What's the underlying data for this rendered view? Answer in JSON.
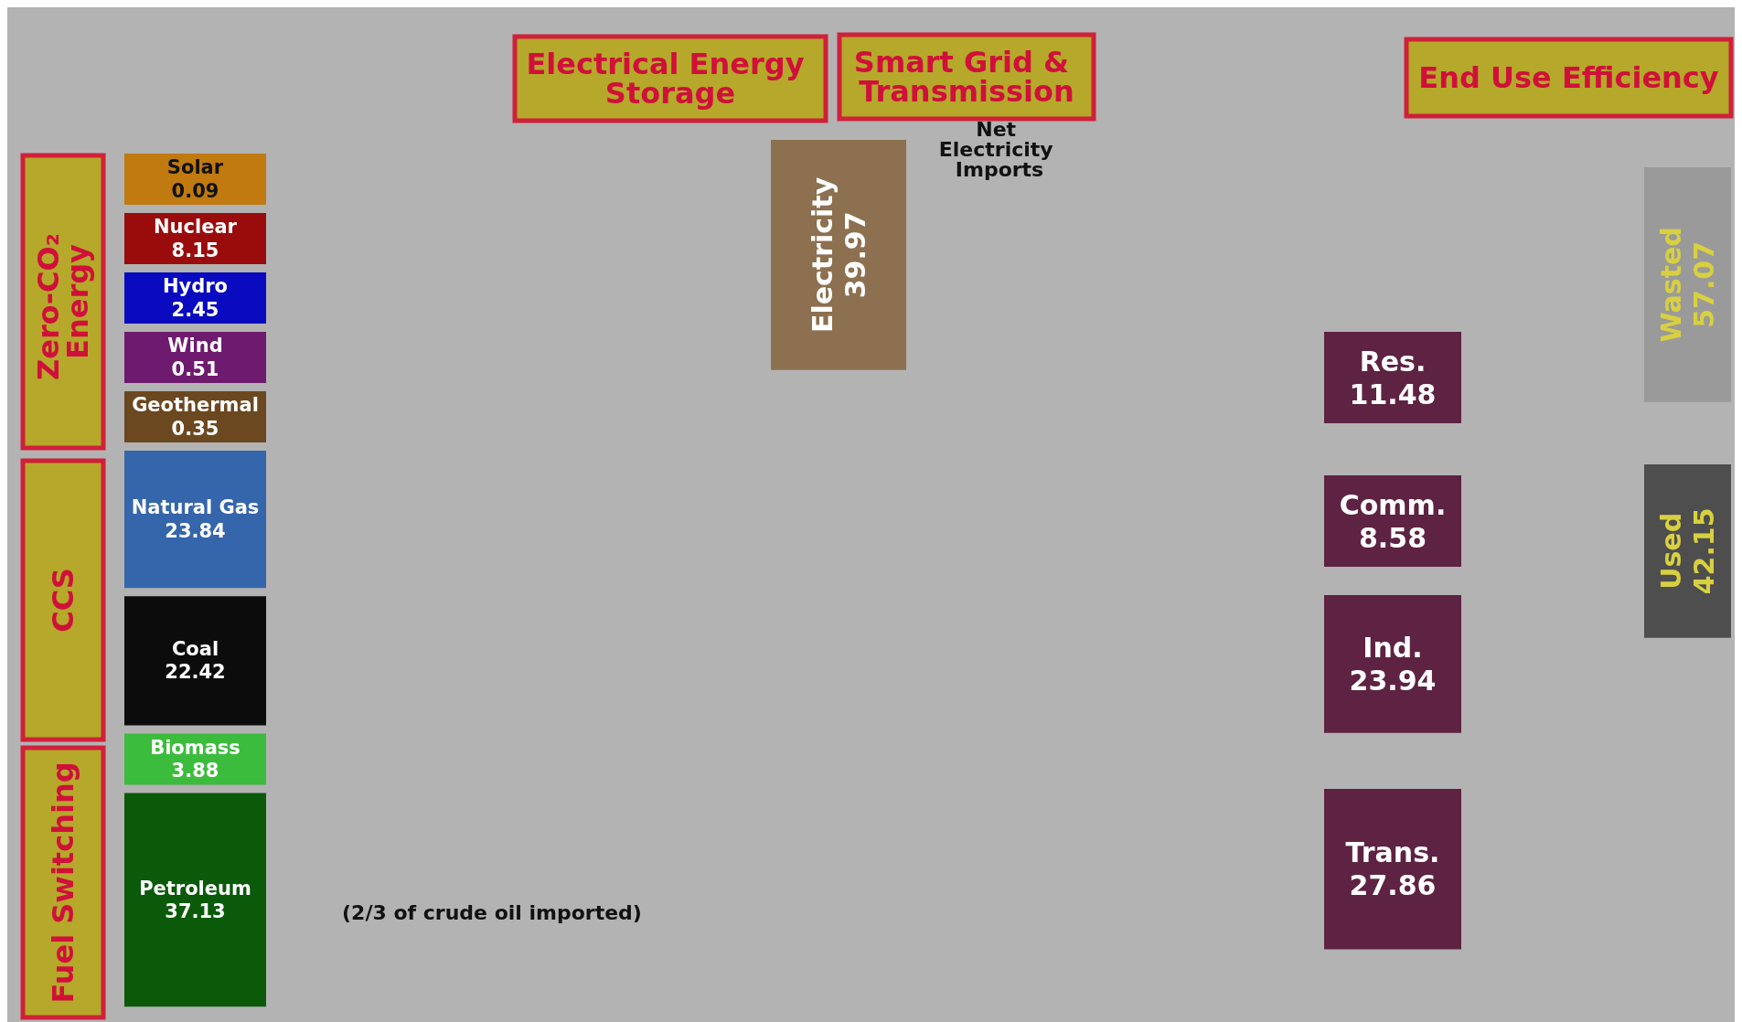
{
  "chart_data": {
    "type": "other",
    "categories": [
      "Solar",
      "Nuclear",
      "Hydro",
      "Wind",
      "Geothermal",
      "Natural Gas",
      "Coal",
      "Biomass",
      "Petroleum",
      "Electricity",
      "Res.",
      "Comm.",
      "Ind.",
      "Trans.",
      "Wasted",
      "Used"
    ],
    "values": [
      0.09,
      8.15,
      2.45,
      0.51,
      0.35,
      23.84,
      22.42,
      3.88,
      37.13,
      39.97,
      11.48,
      8.58,
      23.94,
      27.86,
      57.07,
      42.15
    ],
    "colors": [
      "#c07a10",
      "#9a0c0c",
      "#0a0ac0",
      "#6e1a6e",
      "#6b4820",
      "#3565aa",
      "#0c0c0c",
      "#3cbc3c",
      "#0a5a0a",
      "#8c7050",
      "#5e2242",
      "#5e2242",
      "#5e2242",
      "#5e2242",
      "#9a9a9a",
      "#4e4e4e"
    ],
    "data_labels": true,
    "annotations": [
      "Electrical Energy Storage",
      "Smart Grid & Transmission",
      "End Use Efficiency",
      "Zero-CO₂ Energy",
      "CCS",
      "Fuel Switching",
      "Net Electricity Imports",
      "(2/3 of crude oil imported)"
    ]
  }
}
